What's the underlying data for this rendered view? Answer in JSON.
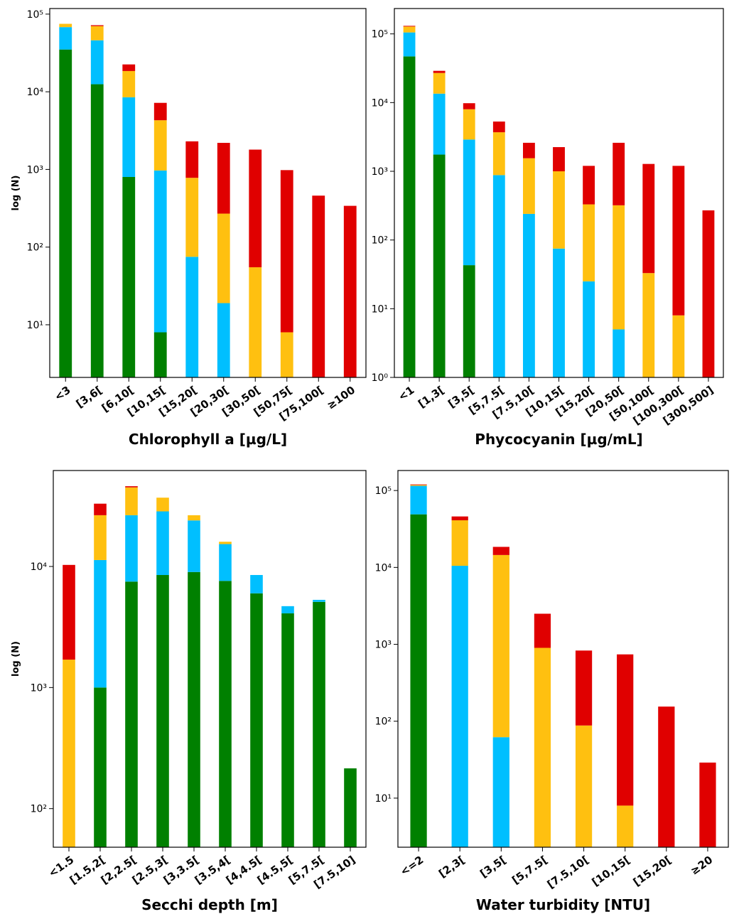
{
  "chart_data": [
    {
      "type": "bar",
      "stacked": true,
      "log_scale": true,
      "xlabel": "Chlorophyll a [µg/L]",
      "ylabel": "log (N)",
      "categories": [
        "<3",
        "[3,6[",
        "[6,10[",
        "[10,15[",
        "[15,20[",
        "[20,30[",
        "[30,50[",
        "[50,75[",
        "[75,100[",
        "≥100"
      ],
      "series": [
        {
          "color": "#008000",
          "values": [
            35000,
            12500,
            800,
            8,
            null,
            null,
            null,
            null,
            null,
            null
          ]
        },
        {
          "color": "#00bfff",
          "values": [
            33000,
            33500,
            7700,
            962,
            75,
            19,
            null,
            null,
            null,
            null
          ]
        },
        {
          "color": "#ffc010",
          "values": [
            7000,
            24000,
            10000,
            3330,
            705,
            251,
            55,
            8,
            null,
            null
          ]
        },
        {
          "color": "#e00000",
          "values": [
            null,
            2000,
            4000,
            2900,
            1520,
            1930,
            1745,
            972,
            460,
            340
          ]
        }
      ],
      "ylim": [
        2.1,
        118000
      ],
      "yticks": [
        {
          "value": 10,
          "label": "10¹"
        },
        {
          "value": 100,
          "label": "10²"
        },
        {
          "value": 1000,
          "label": "10³"
        },
        {
          "value": 10000,
          "label": "10⁴"
        },
        {
          "value": 100000,
          "label": "10⁵"
        }
      ]
    },
    {
      "type": "bar",
      "stacked": true,
      "log_scale": true,
      "xlabel": "Phycocyanin [µg/mL]",
      "categories": [
        "<1",
        "[1,3[",
        "[3,5[",
        "[5,7.5[",
        "[7.5,10[",
        "[10,15[",
        "[15,20[",
        "[20,50[",
        "[50,100[",
        "[100,300[",
        "[300,500]"
      ],
      "series": [
        {
          "color": "#008000",
          "values": [
            47000,
            1750,
            43,
            null,
            null,
            null,
            null,
            null,
            null,
            null,
            null
          ]
        },
        {
          "color": "#00bfff",
          "values": [
            58000,
            11750,
            2857,
            880,
            240,
            75,
            25,
            5,
            null,
            null,
            null
          ]
        },
        {
          "color": "#ffc010",
          "values": [
            23000,
            13500,
            5100,
            2820,
            1310,
            925,
            305,
            315,
            33,
            8,
            null
          ]
        },
        {
          "color": "#e00000",
          "values": [
            3000,
            2000,
            1800,
            1600,
            1050,
            1250,
            870,
            2280,
            1247,
            1192,
            270
          ]
        }
      ],
      "ylim": [
        1,
        234000
      ],
      "yticks": [
        {
          "value": 1,
          "label": "10⁰"
        },
        {
          "value": 10,
          "label": "10¹"
        },
        {
          "value": 100,
          "label": "10²"
        },
        {
          "value": 1000,
          "label": "10³"
        },
        {
          "value": 10000,
          "label": "10⁴"
        },
        {
          "value": 100000,
          "label": "10⁵"
        }
      ]
    },
    {
      "type": "bar",
      "stacked": true,
      "log_scale": true,
      "xlabel": "Secchi depth [m]",
      "ylabel": "log (N)",
      "categories": [
        "<1.5",
        "[1.5,2[",
        "[2,2.5[",
        "[2.5,3[",
        "[3,3.5[",
        "[3.5,4[",
        "[4,4.5[",
        "[4.5,5[",
        "[5,7.5[",
        "[7.5,10]"
      ],
      "series": [
        {
          "color": "#008000",
          "values": [
            null,
            1000,
            7500,
            8500,
            9000,
            7600,
            6000,
            4100,
            5100,
            215
          ]
        },
        {
          "color": "#00bfff",
          "values": [
            null,
            10300,
            19000,
            20000,
            15000,
            7700,
            2500,
            600,
            200,
            null
          ]
        },
        {
          "color": "#ffc010",
          "values": [
            1700,
            15200,
            18500,
            8500,
            2500,
            700,
            null,
            null,
            null,
            null
          ]
        },
        {
          "color": "#e00000",
          "values": [
            8600,
            6500,
            1000,
            null,
            null,
            null,
            null,
            null,
            null,
            null
          ]
        }
      ],
      "ylim": [
        48,
        62000
      ],
      "yticks": [
        {
          "value": 100,
          "label": "10²"
        },
        {
          "value": 1000,
          "label": "10³"
        },
        {
          "value": 10000,
          "label": "10⁴"
        }
      ]
    },
    {
      "type": "bar",
      "stacked": true,
      "log_scale": true,
      "xlabel": "Water turbidity [NTU]",
      "categories": [
        "<=2",
        "[2,3[",
        "[3,5[",
        "[5,7.5[",
        "[7.5,10[",
        "[10,15[",
        "[15,20[",
        "≥20"
      ],
      "series": [
        {
          "color": "#008000",
          "values": [
            49000,
            null,
            null,
            null,
            null,
            null,
            null,
            null
          ]
        },
        {
          "color": "#00bfff",
          "values": [
            66000,
            10500,
            62,
            null,
            null,
            null,
            null,
            null
          ]
        },
        {
          "color": "#ffc010",
          "values": [
            3000,
            30500,
            14438,
            900,
            88,
            8,
            null,
            null
          ]
        },
        {
          "color": "#e00000",
          "values": [
            2000,
            5000,
            4000,
            1600,
            742,
            732,
            155,
            29
          ]
        }
      ],
      "ylim": [
        2.3,
        182000
      ],
      "yticks": [
        {
          "value": 10,
          "label": "10¹"
        },
        {
          "value": 100,
          "label": "10²"
        },
        {
          "value": 1000,
          "label": "10³"
        },
        {
          "value": 10000,
          "label": "10⁴"
        },
        {
          "value": 100000,
          "label": "10⁵"
        }
      ]
    }
  ]
}
